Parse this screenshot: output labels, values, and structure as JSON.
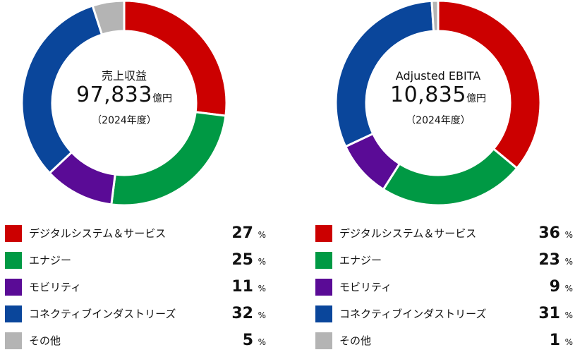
{
  "chart_data": [
    {
      "type": "pie",
      "center": {
        "label": "売上収益",
        "value": "97,833",
        "unit": "億円",
        "year": "（2024年度）"
      },
      "categories": [
        "デジタルシステム＆サービス",
        "エナジー",
        "モビリティ",
        "コネクティブインダストリーズ",
        "その他"
      ],
      "values": [
        27,
        25,
        11,
        32,
        5
      ],
      "percent_unit": "%",
      "colors": [
        "#cc0000",
        "#009944",
        "#5a0b96",
        "#0a469b",
        "#b4b4b4"
      ]
    },
    {
      "type": "pie",
      "center": {
        "label": "Adjusted EBITA",
        "value": "10,835",
        "unit": "億円",
        "year": "（2024年度）"
      },
      "categories": [
        "デジタルシステム＆サービス",
        "エナジー",
        "モビリティ",
        "コネクティブインダストリーズ",
        "その他"
      ],
      "values": [
        36,
        23,
        9,
        31,
        1
      ],
      "percent_unit": "%",
      "colors": [
        "#cc0000",
        "#009944",
        "#5a0b96",
        "#0a469b",
        "#b4b4b4"
      ]
    }
  ]
}
